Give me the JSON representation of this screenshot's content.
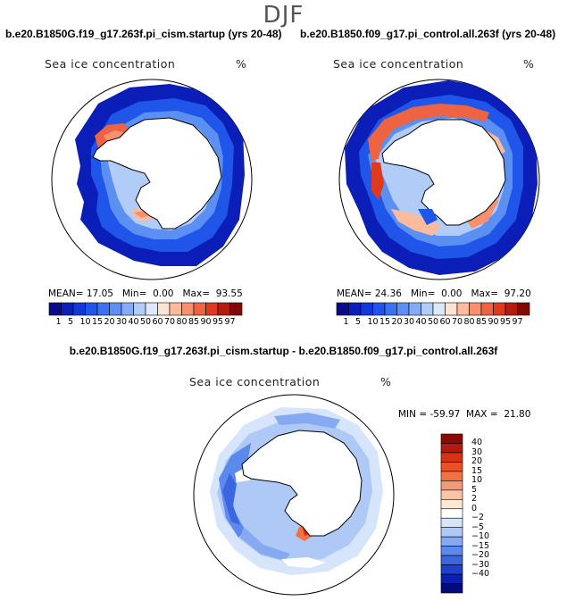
{
  "page_title": "DJF",
  "panels": [
    {
      "title": "b.e20.B1850G.f19_g17.263f.pi_cism.startup (yrs 20-48)",
      "variable": "Sea ice concentration",
      "unit": "%",
      "mean_label": "MEAN=",
      "mean": "17.05",
      "min_label": "Min=",
      "min": "0.00",
      "max_label": "Max=",
      "max": "93.55"
    },
    {
      "title": "b.e20.B1850.f09_g17.pi_control.all.263f (yrs 20-48)",
      "variable": "Sea ice concentration",
      "unit": "%",
      "mean_label": "MEAN=",
      "mean": "24.36",
      "min_label": "Min=",
      "min": "0.00",
      "max_label": "Max=",
      "max": "97.20"
    }
  ],
  "conc_colorbar": {
    "labels": [
      "1",
      "5",
      "10",
      "15",
      "20",
      "30",
      "40",
      "50",
      "60",
      "70",
      "80",
      "85",
      "90",
      "95",
      "97"
    ],
    "colors": [
      "#0a0a8c",
      "#0b1fb8",
      "#0f3ad9",
      "#1f55e8",
      "#3a72ef",
      "#5c8ff2",
      "#84acf5",
      "#b2ccf8",
      "#dde8fb",
      "#fde3d2",
      "#fbbc9e",
      "#f6906f",
      "#ee6443",
      "#dd3a1f",
      "#b51d0e",
      "#800b06"
    ]
  },
  "difference": {
    "title": "b.e20.B1850G.f19_g17.263f.pi_cism.startup - b.e20.B1850.f09_g17.pi_control.all.263f",
    "variable": "Sea ice concentration",
    "unit": "%",
    "min_label": "MIN =",
    "min": "-59.97",
    "max_label": "MAX =",
    "max": "21.80",
    "colorbar_labels": [
      "40",
      "30",
      "20",
      "15",
      "10",
      "5",
      "2",
      "0",
      "−2",
      "−5",
      "−10",
      "−15",
      "−20",
      "−30",
      "−40"
    ],
    "colorbar_colors": [
      "#8c0a06",
      "#b5180c",
      "#d63214",
      "#ea4f25",
      "#f07244",
      "#f59a74",
      "#f9c4a6",
      "#fde7d6",
      "#ffffff",
      "#d6e5fb",
      "#aec9f6",
      "#85aaf1",
      "#5c89ec",
      "#3a66e2",
      "#1d40cf",
      "#0a1fb0",
      "#050a7a"
    ]
  }
}
